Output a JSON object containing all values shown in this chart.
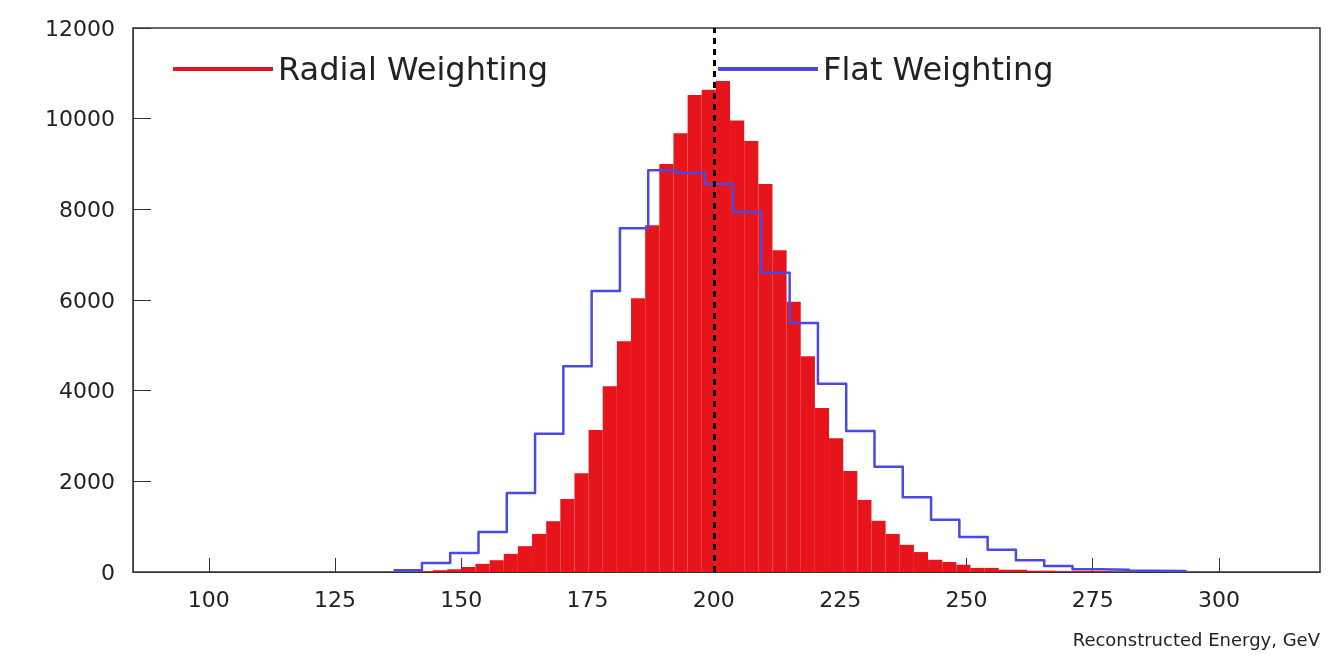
{
  "chart_data": {
    "type": "histogram",
    "xlabel": "Reconstructed Energy, GeV",
    "xlim": [
      85,
      320
    ],
    "xticks": [
      100,
      125,
      150,
      175,
      200,
      225,
      250,
      275,
      300
    ],
    "ylim": [
      0,
      12000
    ],
    "yticks": [
      0,
      2000,
      4000,
      6000,
      8000,
      10000,
      12000
    ],
    "legend": "top",
    "grid": false,
    "ref_lines": [
      {
        "axis": "x",
        "value": 200,
        "color": "#000000",
        "line_style": "dashed"
      }
    ],
    "bins": [
      141.6,
      144.4,
      147.2,
      150,
      152.8,
      155.6,
      158.4,
      161.2,
      164,
      166.8,
      169.6,
      172.4,
      175.2,
      178,
      180.8,
      183.6,
      186.4,
      189.2,
      192,
      194.8,
      197.6,
      200.4,
      203.2,
      206,
      208.8,
      211.6,
      214.4,
      217.2,
      220,
      222.8,
      225.6,
      228.4,
      231.2,
      234,
      236.8,
      239.6,
      242.4,
      245.2,
      248,
      250.8,
      253.6,
      256.4,
      259.2,
      262,
      264.8,
      267.6,
      270.4,
      273.2,
      276,
      278.8,
      281.6
    ],
    "series": [
      {
        "name": "Radial Weighting",
        "color": "#e8141b",
        "values": [
          20,
          40,
          60,
          110,
          180,
          260,
          400,
          570,
          840,
          1120,
          1610,
          2180,
          3130,
          4100,
          5090,
          6040,
          7650,
          9000,
          9680,
          10520,
          10640,
          10830,
          9960,
          9510,
          8560,
          7100,
          5960,
          4760,
          3620,
          2950,
          2230,
          1590,
          1130,
          840,
          600,
          440,
          270,
          220,
          160,
          90,
          90,
          50,
          50,
          30,
          30,
          20,
          20,
          20,
          20,
          null
        ]
      },
      {
        "name": "Flat Weighting",
        "color": "#4a4ae0",
        "type": "step",
        "x": [
          136.6,
          142.2,
          147.8,
          153.4,
          159,
          164.6,
          170.2,
          175.8,
          181.4,
          187,
          192.6,
          198.2,
          203.8,
          209.4,
          215,
          220.6,
          226.2,
          231.8,
          237.4,
          243,
          248.6,
          254.2,
          259.8,
          265.4,
          271,
          276.6,
          282.2,
          287.8,
          293.4
        ],
        "values": [
          40,
          200,
          420,
          880,
          1740,
          3050,
          4540,
          6200,
          7580,
          8860,
          8800,
          8560,
          7940,
          6600,
          5490,
          4150,
          3110,
          2320,
          1650,
          1150,
          770,
          490,
          260,
          130,
          60,
          50,
          30,
          20,
          0
        ]
      }
    ]
  }
}
